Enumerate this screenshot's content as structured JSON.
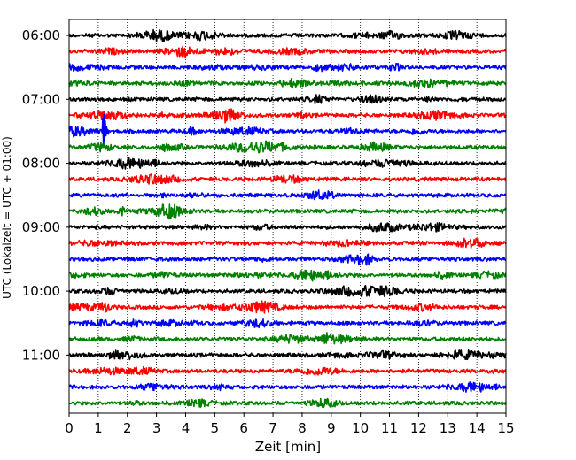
{
  "chart_data": {
    "type": "line",
    "title": "",
    "xlabel": "Zeit  [min]",
    "ylabel": "UTC (Lokalzeit = UTC + 01:00)",
    "xlim": [
      0,
      15
    ],
    "x_ticks": [
      "0",
      "1",
      "2",
      "3",
      "4",
      "5",
      "6",
      "7",
      "8",
      "9",
      "10",
      "11",
      "12",
      "13",
      "14",
      "15"
    ],
    "y_ticks": [
      "06:00",
      "07:00",
      "08:00",
      "09:00",
      "10:00",
      "11:00"
    ],
    "grid": "vertical dotted at every minute",
    "trace_colors": [
      "#000000",
      "#ff0000",
      "#0000ff",
      "#008000"
    ],
    "traces": [
      {
        "start": "06:00",
        "color": "#000000"
      },
      {
        "start": "06:15",
        "color": "#ff0000"
      },
      {
        "start": "06:30",
        "color": "#0000ff"
      },
      {
        "start": "06:45",
        "color": "#008000"
      },
      {
        "start": "07:00",
        "color": "#000000"
      },
      {
        "start": "07:15",
        "color": "#ff0000"
      },
      {
        "start": "07:30",
        "color": "#0000ff"
      },
      {
        "start": "07:45",
        "color": "#008000"
      },
      {
        "start": "08:00",
        "color": "#000000"
      },
      {
        "start": "08:15",
        "color": "#ff0000"
      },
      {
        "start": "08:30",
        "color": "#0000ff"
      },
      {
        "start": "08:45",
        "color": "#008000"
      },
      {
        "start": "09:00",
        "color": "#000000"
      },
      {
        "start": "09:15",
        "color": "#ff0000"
      },
      {
        "start": "09:30",
        "color": "#0000ff"
      },
      {
        "start": "09:45",
        "color": "#008000"
      },
      {
        "start": "10:00",
        "color": "#000000"
      },
      {
        "start": "10:15",
        "color": "#ff0000"
      },
      {
        "start": "10:30",
        "color": "#0000ff"
      },
      {
        "start": "10:45",
        "color": "#008000"
      },
      {
        "start": "11:00",
        "color": "#000000"
      },
      {
        "start": "11:15",
        "color": "#ff0000"
      },
      {
        "start": "11:30",
        "color": "#0000ff"
      },
      {
        "start": "11:45",
        "color": "#008000"
      }
    ],
    "events": [
      {
        "trace_start": "07:30",
        "minute": 1.2,
        "amplitude": 40
      }
    ]
  }
}
